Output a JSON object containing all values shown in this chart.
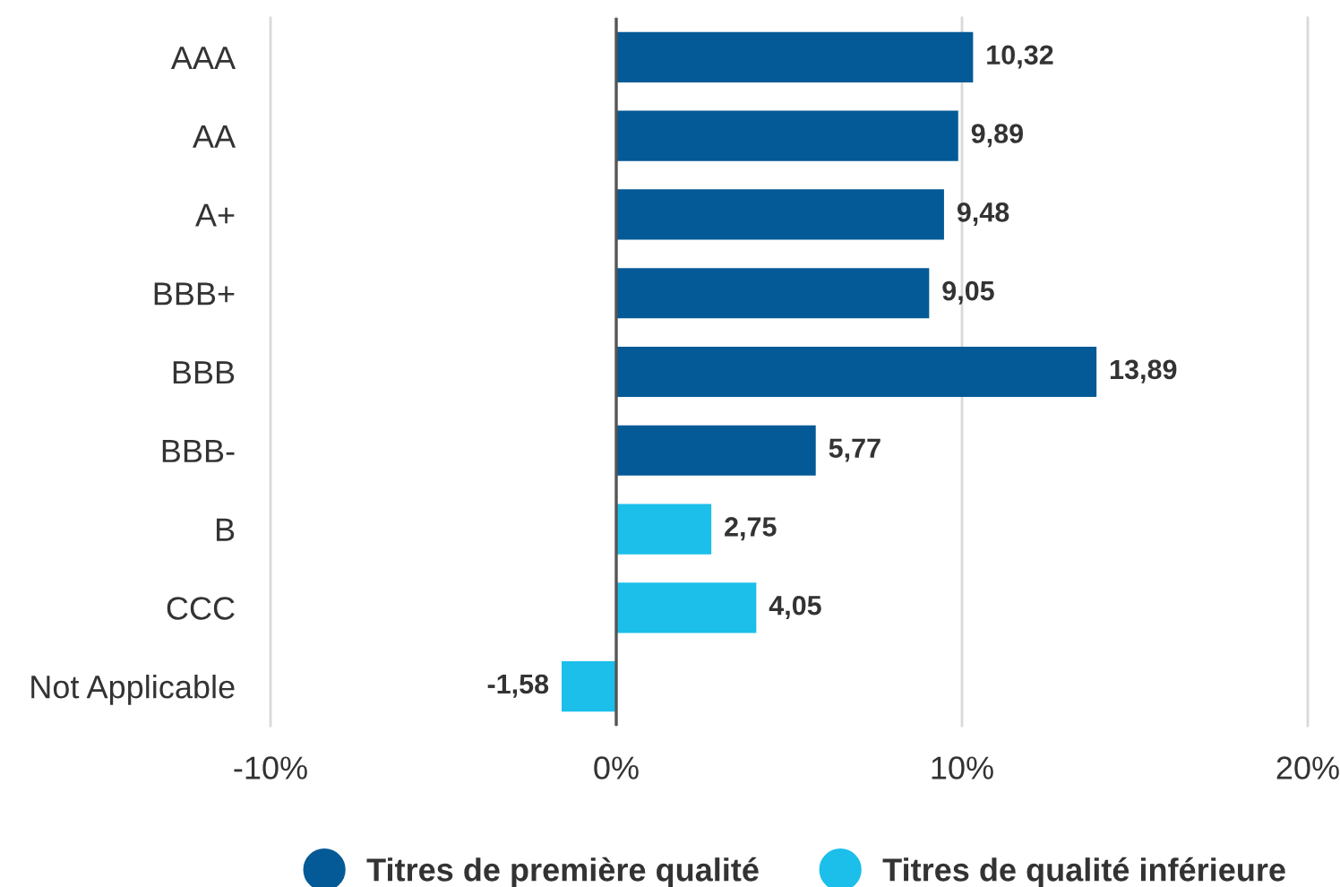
{
  "chart_data": {
    "type": "bar",
    "orientation": "horizontal",
    "categories": [
      "AAA",
      "AA",
      "A+",
      "BBB+",
      "BBB",
      "BBB-",
      "B",
      "CCC",
      "Not Applicable"
    ],
    "series": [
      {
        "name": "Titres de première qualité",
        "color": "#045a96",
        "values": [
          10.32,
          9.89,
          9.48,
          9.05,
          13.89,
          5.77,
          null,
          null,
          null
        ],
        "value_labels": [
          "10,32",
          "9,89",
          "9,48",
          "9,05",
          "13,89",
          "5,77",
          null,
          null,
          null
        ]
      },
      {
        "name": "Titres de qualité inférieure",
        "color": "#1bbfea",
        "values": [
          null,
          null,
          null,
          null,
          null,
          null,
          2.75,
          4.05,
          -1.58
        ],
        "value_labels": [
          null,
          null,
          null,
          null,
          null,
          null,
          "2,75",
          "4,05",
          "-1,58"
        ]
      }
    ],
    "xlim": [
      -10,
      20
    ],
    "xticks": [
      {
        "value": -10,
        "label": "-10%"
      },
      {
        "value": 0,
        "label": "0%"
      },
      {
        "value": 10,
        "label": "10%"
      },
      {
        "value": 20,
        "label": "20%"
      }
    ],
    "ref_lines": [
      {
        "axis": "x",
        "value": 0,
        "color": "#555555"
      }
    ],
    "grid": "x",
    "legend": "bottom",
    "marker": "circle"
  }
}
